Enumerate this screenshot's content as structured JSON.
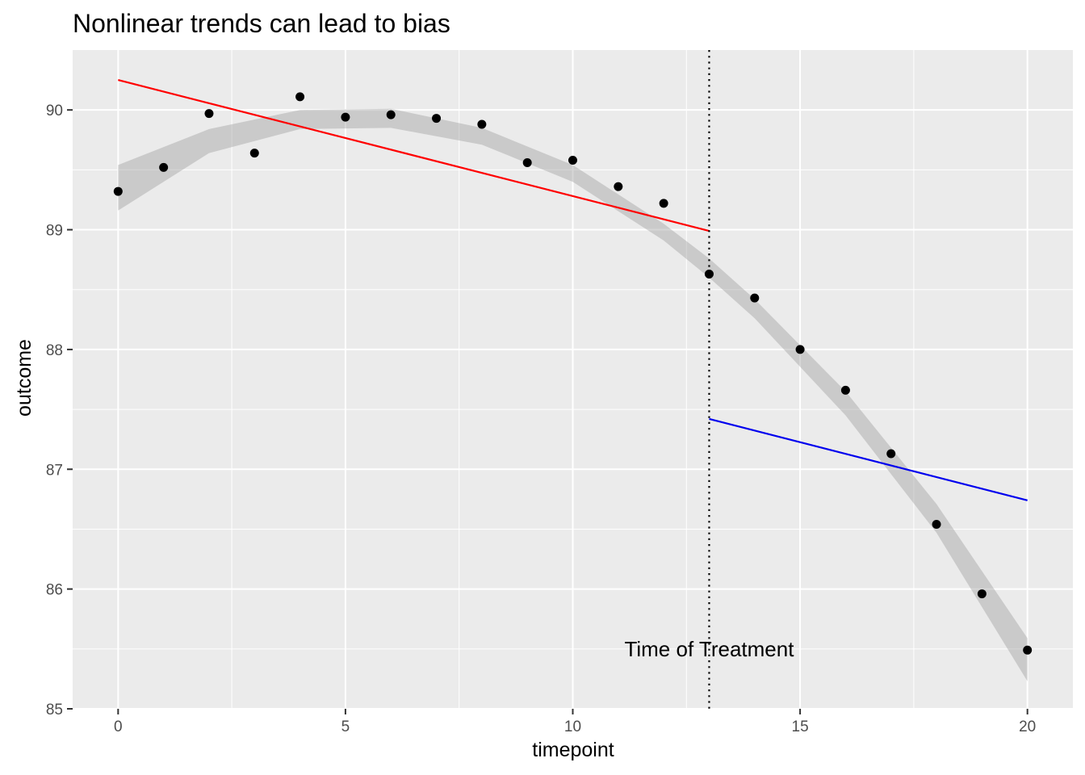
{
  "chart_data": {
    "type": "scatter",
    "title": "Nonlinear trends can lead to bias",
    "xlabel": "timepoint",
    "ylabel": "outcome",
    "xlim": [
      -1,
      21
    ],
    "ylim": [
      85,
      90.5
    ],
    "grid": true,
    "x_ticks": [
      0,
      5,
      10,
      15,
      20
    ],
    "y_ticks": [
      85,
      86,
      87,
      88,
      89,
      90
    ],
    "points": [
      {
        "x": 0,
        "y": 89.32
      },
      {
        "x": 1,
        "y": 89.52
      },
      {
        "x": 2,
        "y": 89.97
      },
      {
        "x": 3,
        "y": 89.64
      },
      {
        "x": 4,
        "y": 90.11
      },
      {
        "x": 5,
        "y": 89.94
      },
      {
        "x": 6,
        "y": 89.96
      },
      {
        "x": 7,
        "y": 89.93
      },
      {
        "x": 8,
        "y": 89.88
      },
      {
        "x": 9,
        "y": 89.56
      },
      {
        "x": 10,
        "y": 89.58
      },
      {
        "x": 11,
        "y": 89.36
      },
      {
        "x": 12,
        "y": 89.22
      },
      {
        "x": 13,
        "y": 88.63
      },
      {
        "x": 14,
        "y": 88.43
      },
      {
        "x": 15,
        "y": 88.0
      },
      {
        "x": 16,
        "y": 87.66
      },
      {
        "x": 17,
        "y": 87.13
      },
      {
        "x": 18,
        "y": 86.54
      },
      {
        "x": 19,
        "y": 85.96
      },
      {
        "x": 20,
        "y": 85.49
      }
    ],
    "smooth_curve": {
      "x": [
        0,
        2,
        4,
        6,
        8,
        10,
        12,
        13,
        14,
        16,
        18,
        20
      ],
      "y": [
        89.35,
        89.74,
        89.92,
        89.93,
        89.78,
        89.47,
        88.98,
        88.68,
        88.34,
        87.55,
        86.59,
        85.41
      ],
      "band_halfwidth": [
        0.19,
        0.1,
        0.08,
        0.08,
        0.07,
        0.07,
        0.07,
        0.08,
        0.08,
        0.1,
        0.12,
        0.18
      ]
    },
    "trend_lines": [
      {
        "color": "#ff0000",
        "x": [
          0,
          13
        ],
        "y": [
          90.25,
          88.99
        ]
      },
      {
        "color": "#0000ee",
        "x": [
          13,
          20
        ],
        "y": [
          87.42,
          86.74
        ]
      }
    ],
    "vline": {
      "x": 13
    },
    "annotation": {
      "text": "Time of Treatment",
      "x": 13,
      "y": 85.5
    }
  }
}
